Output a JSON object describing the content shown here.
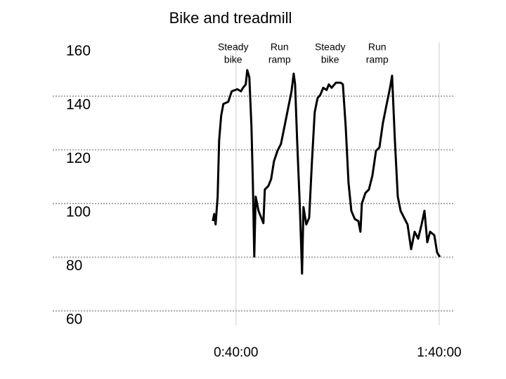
{
  "chart_data": {
    "type": "line",
    "title": "Bike and treadmill",
    "xlim": [
      0,
      6250
    ],
    "ylim": [
      60,
      160
    ],
    "yticks": [
      60,
      80,
      100,
      120,
      140,
      160
    ],
    "xticks": [
      {
        "value": 2400,
        "label": "0:40:00"
      },
      {
        "value": 6000,
        "label": "1:40:00"
      }
    ],
    "grid": true,
    "annotations": [
      {
        "x": 2350,
        "lines": [
          "Steady",
          "bike"
        ]
      },
      {
        "x": 3172,
        "lines": [
          "Run",
          "ramp"
        ]
      },
      {
        "x": 4068,
        "lines": [
          "Steady",
          "bike"
        ]
      },
      {
        "x": 4902,
        "lines": [
          "Run",
          "ramp"
        ]
      }
    ],
    "series": [
      {
        "color": "#000000",
        "x": [
          1989,
          2014,
          2039,
          2076,
          2101,
          2138,
          2176,
          2263,
          2325,
          2425,
          2487,
          2525,
          2574,
          2599,
          2637,
          2674,
          2699,
          2724,
          2749,
          2799,
          2849,
          2886,
          2911,
          2973,
          3023,
          3073,
          3135,
          3197,
          3260,
          3322,
          3384,
          3422,
          3447,
          3484,
          3534,
          3571,
          3596,
          3646,
          3696,
          3746,
          3795,
          3845,
          3895,
          3945,
          4007,
          4045,
          4095,
          4169,
          4257,
          4294,
          4344,
          4394,
          4443,
          4506,
          4568,
          4605,
          4630,
          4693,
          4755,
          4817,
          4880,
          4942,
          5004,
          5066,
          5129,
          5166,
          5216,
          5266,
          5316,
          5378,
          5440,
          5503,
          5565,
          5627,
          5689,
          5739,
          5789,
          5839,
          5914,
          5964,
          6013
        ],
        "values": [
          93.5,
          96.1,
          92.2,
          102.6,
          123.5,
          132.7,
          137.1,
          137.9,
          141.8,
          142.6,
          141.8,
          143.1,
          144.4,
          149.7,
          147,
          128.7,
          107.8,
          80.3,
          102.6,
          97.3,
          94.7,
          92.7,
          105.2,
          106.5,
          109.1,
          115.7,
          119.6,
          122.2,
          128.7,
          135.3,
          141.8,
          148.4,
          144.4,
          123.5,
          97.3,
          73.9,
          98.7,
          92.2,
          94.7,
          115.7,
          134,
          139.2,
          140.5,
          143.1,
          142.3,
          144.4,
          143.1,
          145,
          145,
          144.4,
          128.7,
          107.8,
          97.3,
          94.2,
          93.5,
          89.5,
          100,
          103.9,
          105.2,
          110.4,
          119.6,
          120.9,
          130.1,
          136.6,
          143.1,
          147.6,
          123.5,
          102.6,
          97.3,
          94.7,
          92.2,
          83,
          89.5,
          86.9,
          92.2,
          97.3,
          85.6,
          89.5,
          88.2,
          81.7,
          80.1
        ]
      }
    ]
  }
}
